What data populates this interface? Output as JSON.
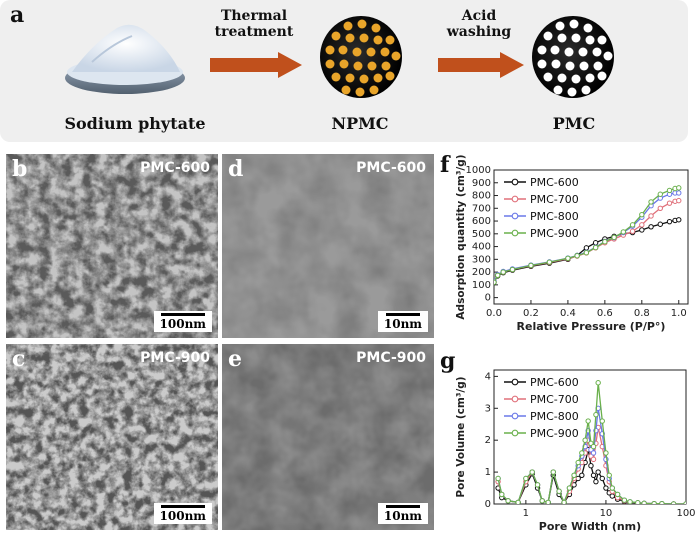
{
  "panel_labels": {
    "a": "a",
    "b": "b",
    "c": "c",
    "d": "d",
    "e": "e",
    "f": "f",
    "g": "g"
  },
  "scheme": {
    "step1_line1": "Thermal",
    "step1_line2": "treatment",
    "step2_line1": "Acid",
    "step2_line2": "washing",
    "caption_start": "Sodium phytate",
    "caption_mid": "NPMC",
    "caption_end": "PMC",
    "arrow_color": "#c0501c",
    "particle_color": "#e9a52a"
  },
  "micrographs": [
    {
      "id": "b",
      "tag": "PMC-600",
      "scale": "100nm",
      "type": "SEM"
    },
    {
      "id": "c",
      "tag": "PMC-900",
      "scale": "100nm",
      "type": "SEM"
    },
    {
      "id": "d",
      "tag": "PMC-600",
      "scale": "10nm",
      "type": "TEM"
    },
    {
      "id": "e",
      "tag": "PMC-900",
      "scale": "10nm",
      "type": "TEM"
    }
  ],
  "chart_data": [
    {
      "type": "line",
      "panel": "f",
      "xlabel": "Relative Pressure (P/P°)",
      "ylabel": "Adsorption quantity (cm³/g)",
      "xlim": [
        0,
        1.05
      ],
      "ylim": [
        -50,
        1000
      ],
      "xticks": [
        "0.0",
        "0.2",
        "0.4",
        "0.6",
        "0.8",
        "1.0"
      ],
      "yticks": [
        "0",
        "100",
        "200",
        "300",
        "400",
        "500",
        "600",
        "700",
        "800",
        "900",
        "1000"
      ],
      "legend_position": "top-left",
      "series": [
        {
          "name": "PMC-600",
          "color": "#111111",
          "x": [
            0.0,
            0.02,
            0.05,
            0.1,
            0.2,
            0.3,
            0.4,
            0.45,
            0.5,
            0.55,
            0.6,
            0.65,
            0.7,
            0.75,
            0.8,
            0.85,
            0.9,
            0.95,
            0.98,
            1.0
          ],
          "y": [
            120,
            170,
            195,
            215,
            245,
            270,
            300,
            330,
            390,
            430,
            460,
            480,
            500,
            510,
            530,
            555,
            575,
            595,
            605,
            610
          ]
        },
        {
          "name": "PMC-700",
          "color": "#e0707a",
          "x": [
            0.0,
            0.02,
            0.05,
            0.1,
            0.2,
            0.3,
            0.4,
            0.45,
            0.5,
            0.55,
            0.6,
            0.65,
            0.7,
            0.75,
            0.8,
            0.85,
            0.9,
            0.95,
            0.98,
            1.0
          ],
          "y": [
            125,
            175,
            200,
            220,
            250,
            275,
            305,
            325,
            350,
            390,
            430,
            460,
            490,
            520,
            570,
            640,
            700,
            740,
            755,
            760
          ]
        },
        {
          "name": "PMC-800",
          "color": "#6a78e8",
          "x": [
            0.0,
            0.02,
            0.05,
            0.1,
            0.2,
            0.3,
            0.4,
            0.45,
            0.5,
            0.55,
            0.6,
            0.65,
            0.7,
            0.75,
            0.8,
            0.85,
            0.9,
            0.95,
            0.98,
            1.0
          ],
          "y": [
            130,
            180,
            205,
            225,
            255,
            280,
            310,
            330,
            355,
            395,
            440,
            470,
            510,
            560,
            630,
            720,
            780,
            810,
            820,
            820
          ]
        },
        {
          "name": "PMC-900",
          "color": "#6ab04c",
          "x": [
            0.0,
            0.02,
            0.05,
            0.1,
            0.2,
            0.3,
            0.4,
            0.45,
            0.5,
            0.55,
            0.6,
            0.65,
            0.7,
            0.75,
            0.8,
            0.85,
            0.9,
            0.95,
            0.98,
            1.0
          ],
          "y": [
            120,
            175,
            200,
            220,
            252,
            278,
            308,
            328,
            352,
            392,
            438,
            472,
            515,
            570,
            650,
            750,
            810,
            840,
            855,
            860
          ]
        }
      ]
    },
    {
      "type": "line",
      "panel": "g",
      "xlabel": "Pore Width (nm)",
      "ylabel": "Pore Volume (cm³/g)",
      "xscale": "log",
      "xlim": [
        0.4,
        100
      ],
      "ylim": [
        0,
        4.2
      ],
      "xticks": [
        "1",
        "10",
        "100"
      ],
      "yticks": [
        "0",
        "1",
        "2",
        "3",
        "4"
      ],
      "legend_position": "top-left",
      "series": [
        {
          "name": "PMC-600",
          "color": "#111111",
          "x": [
            0.45,
            0.5,
            0.6,
            0.8,
            1.0,
            1.2,
            1.4,
            1.6,
            1.9,
            2.2,
            2.6,
            3.0,
            3.5,
            4.0,
            4.5,
            5.0,
            5.5,
            6.0,
            6.5,
            7.0,
            7.5,
            8.0,
            9.0,
            10.0,
            11.0,
            12.0,
            14.0,
            17.0,
            20.0,
            25.0,
            30.0,
            40.0,
            50.0,
            70.0,
            100.0
          ],
          "y": [
            0.5,
            0.2,
            0.1,
            0.05,
            0.6,
            0.95,
            0.5,
            0.1,
            0.05,
            0.9,
            0.3,
            0.05,
            0.3,
            0.6,
            0.8,
            0.9,
            1.3,
            1.7,
            1.2,
            0.9,
            0.7,
            1.0,
            0.8,
            0.5,
            0.35,
            0.25,
            0.15,
            0.08,
            0.05,
            0.03,
            0.02,
            0.01,
            0.01,
            0.0,
            0.0
          ]
        },
        {
          "name": "PMC-700",
          "color": "#e0707a",
          "x": [
            0.45,
            0.5,
            0.6,
            0.8,
            1.0,
            1.2,
            1.4,
            1.6,
            1.9,
            2.2,
            2.6,
            3.0,
            3.5,
            4.0,
            4.5,
            5.0,
            5.5,
            6.0,
            6.5,
            7.0,
            7.5,
            8.0,
            9.0,
            10.0,
            11.0,
            12.0,
            14.0,
            17.0,
            20.0,
            25.0,
            30.0,
            40.0,
            50.0,
            70.0,
            100.0
          ],
          "y": [
            0.7,
            0.3,
            0.1,
            0.05,
            0.7,
            1.0,
            0.6,
            0.1,
            0.05,
            1.0,
            0.4,
            0.05,
            0.4,
            0.8,
            1.1,
            1.3,
            1.6,
            2.0,
            1.5,
            1.4,
            1.9,
            2.4,
            1.8,
            1.2,
            0.7,
            0.4,
            0.2,
            0.1,
            0.06,
            0.04,
            0.02,
            0.01,
            0.01,
            0.0,
            0.0
          ]
        },
        {
          "name": "PMC-800",
          "color": "#6a78e8",
          "x": [
            0.45,
            0.5,
            0.6,
            0.8,
            1.0,
            1.2,
            1.4,
            1.6,
            1.9,
            2.2,
            2.6,
            3.0,
            3.5,
            4.0,
            4.5,
            5.0,
            5.5,
            6.0,
            6.5,
            7.0,
            7.5,
            8.0,
            9.0,
            10.0,
            11.0,
            12.0,
            14.0,
            17.0,
            20.0,
            25.0,
            30.0,
            40.0,
            50.0,
            70.0,
            100.0
          ],
          "y": [
            0.8,
            0.3,
            0.1,
            0.05,
            0.8,
            1.0,
            0.6,
            0.1,
            0.05,
            1.0,
            0.4,
            0.05,
            0.5,
            0.9,
            1.2,
            1.5,
            1.8,
            2.3,
            1.7,
            1.6,
            2.3,
            3.0,
            2.2,
            1.4,
            0.8,
            0.5,
            0.3,
            0.12,
            0.07,
            0.04,
            0.02,
            0.01,
            0.01,
            0.0,
            0.0
          ]
        },
        {
          "name": "PMC-900",
          "color": "#6ab04c",
          "x": [
            0.45,
            0.5,
            0.6,
            0.8,
            1.0,
            1.2,
            1.4,
            1.6,
            1.9,
            2.2,
            2.6,
            3.0,
            3.5,
            4.0,
            4.5,
            5.0,
            5.5,
            6.0,
            6.5,
            7.0,
            7.5,
            8.0,
            9.0,
            10.0,
            11.0,
            12.0,
            14.0,
            17.0,
            20.0,
            25.0,
            30.0,
            40.0,
            50.0,
            70.0,
            100.0
          ],
          "y": [
            0.8,
            0.3,
            0.1,
            0.05,
            0.8,
            1.0,
            0.6,
            0.1,
            0.05,
            1.0,
            0.4,
            0.05,
            0.5,
            0.9,
            1.3,
            1.6,
            2.0,
            2.6,
            1.9,
            1.8,
            2.8,
            3.8,
            2.6,
            1.6,
            0.9,
            0.5,
            0.3,
            0.12,
            0.07,
            0.04,
            0.02,
            0.01,
            0.01,
            0.0,
            0.0
          ]
        }
      ]
    }
  ]
}
